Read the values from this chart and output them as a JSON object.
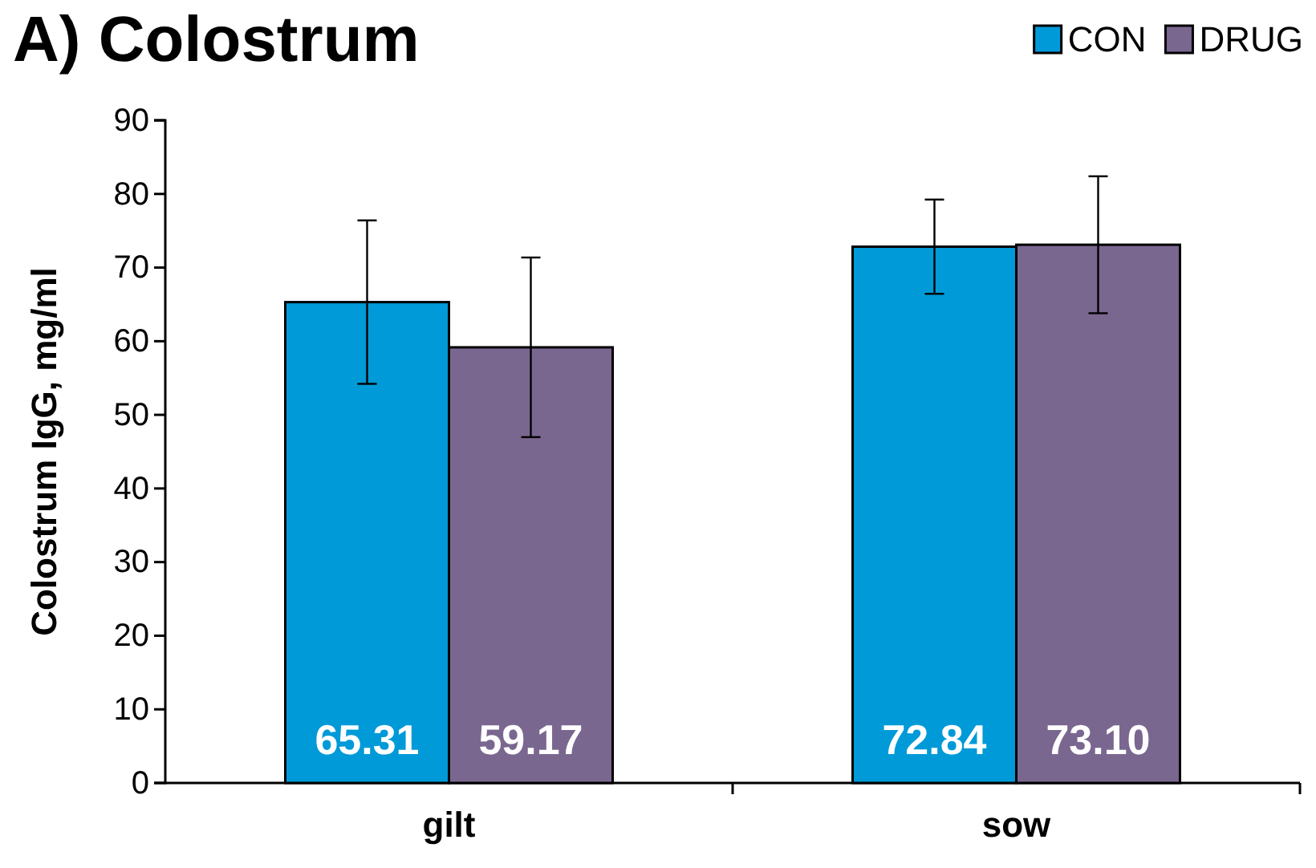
{
  "chart_data": {
    "type": "bar",
    "title": "A) Colostrum",
    "ylabel": "Colostrum IgG, mg/ml",
    "categories": [
      "gilt",
      "sow"
    ],
    "series": [
      {
        "name": "CON",
        "color": "#009ad8",
        "values": [
          65.31,
          72.84
        ],
        "value_labels": [
          "65.31",
          "72.84"
        ],
        "errors": [
          11.1,
          6.4
        ]
      },
      {
        "name": "DRUG",
        "color": "#7a6790",
        "values": [
          59.17,
          73.1
        ],
        "value_labels": [
          "59.17",
          "73.10"
        ],
        "errors": [
          12.2,
          9.3
        ]
      }
    ],
    "ylim": [
      0,
      90
    ],
    "yticks": [
      0,
      10,
      20,
      30,
      40,
      50,
      60,
      70,
      80,
      90
    ],
    "grid": false,
    "legend": "top right"
  }
}
